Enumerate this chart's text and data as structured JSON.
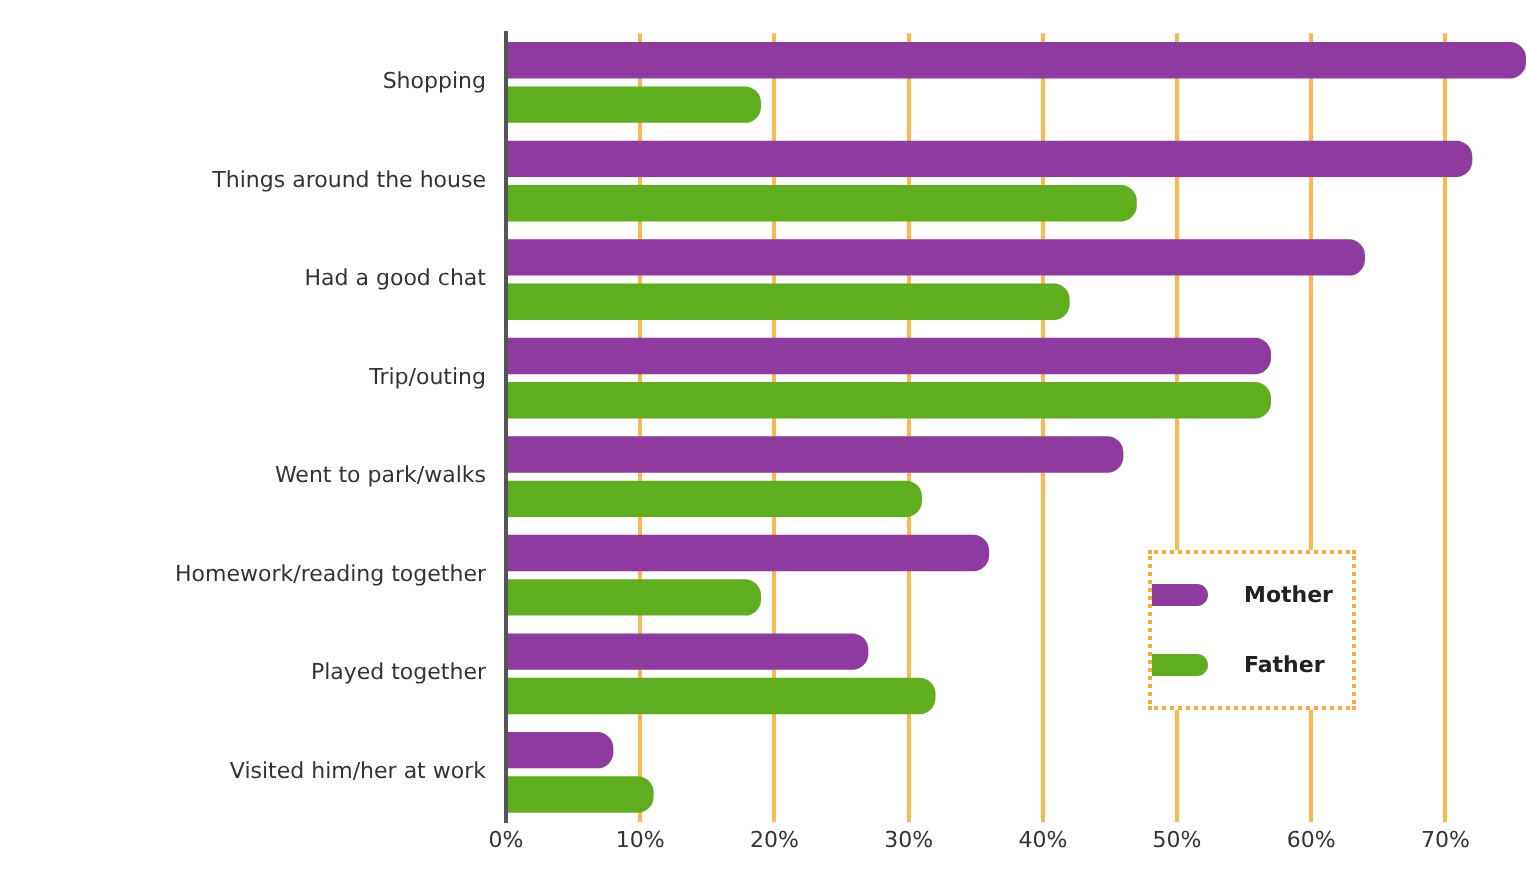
{
  "chart_data": {
    "type": "bar",
    "orientation": "horizontal",
    "categories": [
      "Shopping",
      "Things around the house",
      "Had a good chat",
      "Trip/outing",
      "Went to park/walks",
      "Homework/reading together",
      "Played together",
      "Visited him/her at work"
    ],
    "series": [
      {
        "name": "Mother",
        "color": "#8e3a9e",
        "values": [
          76,
          72,
          64,
          57,
          46,
          36,
          27,
          8
        ]
      },
      {
        "name": "Father",
        "color": "#5fae1e",
        "values": [
          19,
          47,
          42,
          57,
          31,
          19,
          32,
          11
        ]
      }
    ],
    "xlim": [
      0,
      76
    ],
    "xticks": [
      {
        "value": 0,
        "label": "0%"
      },
      {
        "value": 10,
        "label": "10%"
      },
      {
        "value": 20,
        "label": "20%"
      },
      {
        "value": 30,
        "label": "30%"
      },
      {
        "value": 40,
        "label": "40%"
      },
      {
        "value": 50,
        "label": "50%"
      },
      {
        "value": 60,
        "label": "60%"
      },
      {
        "value": 70,
        "label": "70%"
      }
    ],
    "grid": "x",
    "legend": "bottom right"
  }
}
